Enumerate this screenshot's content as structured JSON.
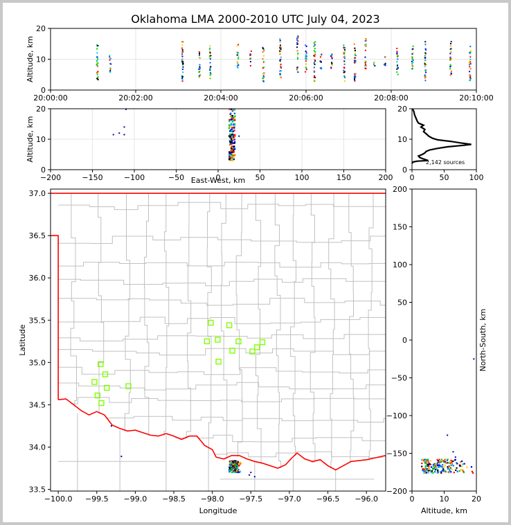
{
  "title": "Oklahoma LMA 2000-2010 UTC July 04, 2023",
  "colors": {
    "border": "#ff0000",
    "county": "#c0c0c0",
    "station": "#7fff00",
    "grid": "#e6e6e6"
  },
  "chart_data": [
    {
      "id": "time_height",
      "type": "scatter",
      "ylabel": "Altitude, km",
      "ylim": [
        0,
        20
      ],
      "yticks": [
        0,
        10,
        20
      ],
      "xticks": [
        "20:00:00",
        "20:02:00",
        "20:04:00",
        "20:06:00",
        "20:08:00",
        "20:10:00"
      ],
      "xlim_minutes": [
        0,
        10
      ],
      "grid": true,
      "bursts": [
        {
          "t": 1.1,
          "zmin": 3,
          "zmax": 15
        },
        {
          "t": 1.4,
          "zmin": 6,
          "zmax": 12
        },
        {
          "t": 3.1,
          "zmin": 3,
          "zmax": 16
        },
        {
          "t": 3.5,
          "zmin": 4,
          "zmax": 13
        },
        {
          "t": 3.75,
          "zmin": 4,
          "zmax": 15
        },
        {
          "t": 4.4,
          "zmin": 7,
          "zmax": 15
        },
        {
          "t": 4.7,
          "zmin": 8,
          "zmax": 13
        },
        {
          "t": 5.0,
          "zmin": 3,
          "zmax": 14
        },
        {
          "t": 5.4,
          "zmin": 3,
          "zmax": 17
        },
        {
          "t": 5.8,
          "zmin": 6,
          "zmax": 18
        },
        {
          "t": 6.0,
          "zmin": 6,
          "zmax": 15
        },
        {
          "t": 6.2,
          "zmin": 3,
          "zmax": 16
        },
        {
          "t": 6.35,
          "zmin": 7,
          "zmax": 12
        },
        {
          "t": 6.6,
          "zmin": 7,
          "zmax": 12
        },
        {
          "t": 6.9,
          "zmin": 3,
          "zmax": 15
        },
        {
          "t": 7.15,
          "zmin": 3,
          "zmax": 16
        },
        {
          "t": 7.4,
          "zmin": 7,
          "zmax": 17
        },
        {
          "t": 7.6,
          "zmin": 8,
          "zmax": 10
        },
        {
          "t": 7.85,
          "zmin": 8,
          "zmax": 11
        },
        {
          "t": 8.15,
          "zmin": 5,
          "zmax": 14
        },
        {
          "t": 8.5,
          "zmin": 7,
          "zmax": 15
        },
        {
          "t": 8.8,
          "zmin": 3,
          "zmax": 16
        },
        {
          "t": 9.4,
          "zmin": 5,
          "zmax": 16
        },
        {
          "t": 9.85,
          "zmin": 3,
          "zmax": 15
        }
      ]
    },
    {
      "id": "ew_alt",
      "type": "scatter",
      "xlabel": "East-West, km",
      "ylabel": "Altitude, km",
      "xlim": [
        -200,
        200
      ],
      "ylim": [
        0,
        20
      ],
      "xticks": [
        -200,
        -150,
        -100,
        -50,
        0,
        50,
        100,
        150,
        200
      ],
      "yticks": [
        0,
        10,
        20
      ],
      "grid": true,
      "column": {
        "x_min": 13,
        "x_max": 20,
        "z_min": 3,
        "z_max": 20
      },
      "outliers": [
        [
          -125,
          11.5
        ],
        [
          -118,
          12
        ],
        [
          -112,
          14
        ],
        [
          -112,
          11.5
        ],
        [
          18,
          12.5
        ],
        [
          25,
          11
        ],
        [
          -110,
          19.8
        ]
      ]
    },
    {
      "id": "alt_hist",
      "type": "line",
      "xlim": [
        0,
        100
      ],
      "ylim": [
        0,
        20
      ],
      "xticks": [
        0,
        50,
        100
      ],
      "yticks": [
        0,
        10,
        20
      ],
      "annotation": "2,142 sources",
      "profile": [
        [
          0.3,
          2
        ],
        [
          1,
          2.5
        ],
        [
          8,
          2.8
        ],
        [
          25,
          3
        ],
        [
          18,
          3.5
        ],
        [
          12,
          4
        ],
        [
          10,
          4.5
        ],
        [
          16,
          5
        ],
        [
          20,
          5.5
        ],
        [
          22,
          6
        ],
        [
          28,
          6.5
        ],
        [
          40,
          7
        ],
        [
          55,
          7.5
        ],
        [
          80,
          8
        ],
        [
          92,
          8.3
        ],
        [
          75,
          8.8
        ],
        [
          60,
          9.3
        ],
        [
          40,
          9.8
        ],
        [
          32,
          10.3
        ],
        [
          26,
          11
        ],
        [
          22,
          11.8
        ],
        [
          18,
          12.5
        ],
        [
          20,
          13.2
        ],
        [
          14,
          14
        ],
        [
          18,
          14.6
        ],
        [
          10,
          15.3
        ],
        [
          8,
          16
        ],
        [
          6,
          17
        ],
        [
          4,
          18
        ],
        [
          3,
          19
        ],
        [
          1,
          20
        ]
      ]
    },
    {
      "id": "plan_view",
      "type": "scatter",
      "xlabel": "Longitude",
      "ylabel": "Latitude",
      "xlim": [
        -100.1,
        -95.75
      ],
      "ylim": [
        33.48,
        37.05
      ],
      "xticks": [
        -100.0,
        -99.5,
        -99.0,
        -98.5,
        -98.0,
        -97.5,
        -97.0,
        -96.5,
        -96.0
      ],
      "yticks": [
        33.5,
        34.0,
        34.5,
        35.0,
        35.5,
        36.0,
        36.5,
        37.0
      ],
      "xtick_labels": [
        "−100.0",
        "−99.5",
        "−99.0",
        "−98.5",
        "−98.0",
        "−97.5",
        "−97.0",
        "−96.5",
        "−96.0"
      ],
      "ytick_labels": [
        "33.5",
        "34.0",
        "34.5",
        "35.0",
        "35.5",
        "36.0",
        "36.5",
        "37.0"
      ],
      "stations": [
        [
          -98.02,
          35.47
        ],
        [
          -97.78,
          35.44
        ],
        [
          -98.07,
          35.25
        ],
        [
          -97.93,
          35.27
        ],
        [
          -97.66,
          35.25
        ],
        [
          -97.74,
          35.14
        ],
        [
          -97.42,
          35.18
        ],
        [
          -97.35,
          35.24
        ],
        [
          -97.48,
          35.13
        ],
        [
          -97.92,
          35.01
        ],
        [
          -99.45,
          34.98
        ],
        [
          -99.39,
          34.86
        ],
        [
          -99.53,
          34.77
        ],
        [
          -99.37,
          34.7
        ],
        [
          -99.09,
          34.72
        ],
        [
          -99.49,
          34.61
        ],
        [
          -99.44,
          34.52
        ]
      ],
      "lightning_cluster": {
        "lon_min": -97.78,
        "lon_max": -97.62,
        "lat_min": 33.7,
        "lat_max": 33.84
      },
      "outliers": [
        [
          -99.31,
          34.25
        ],
        [
          -99.18,
          33.89
        ],
        [
          -97.45,
          33.65
        ],
        [
          -97.5,
          33.7
        ],
        [
          -97.52,
          33.67
        ]
      ]
    },
    {
      "id": "alt_ns",
      "type": "scatter",
      "xlabel": "Altitude, km",
      "ylabel": "North-South, km",
      "xlim": [
        0,
        20
      ],
      "ylim": [
        -200,
        200
      ],
      "xticks": [
        0,
        10,
        20
      ],
      "yticks": [
        -200,
        -150,
        -100,
        -50,
        0,
        50,
        100,
        150,
        200
      ],
      "cluster": {
        "z_min": 3,
        "z_max": 20,
        "y_min": -176,
        "y_max": -158
      },
      "outliers": [
        [
          11,
          -126
        ],
        [
          12.8,
          -148
        ],
        [
          19.2,
          -25
        ],
        [
          13.5,
          -155
        ]
      ]
    }
  ]
}
